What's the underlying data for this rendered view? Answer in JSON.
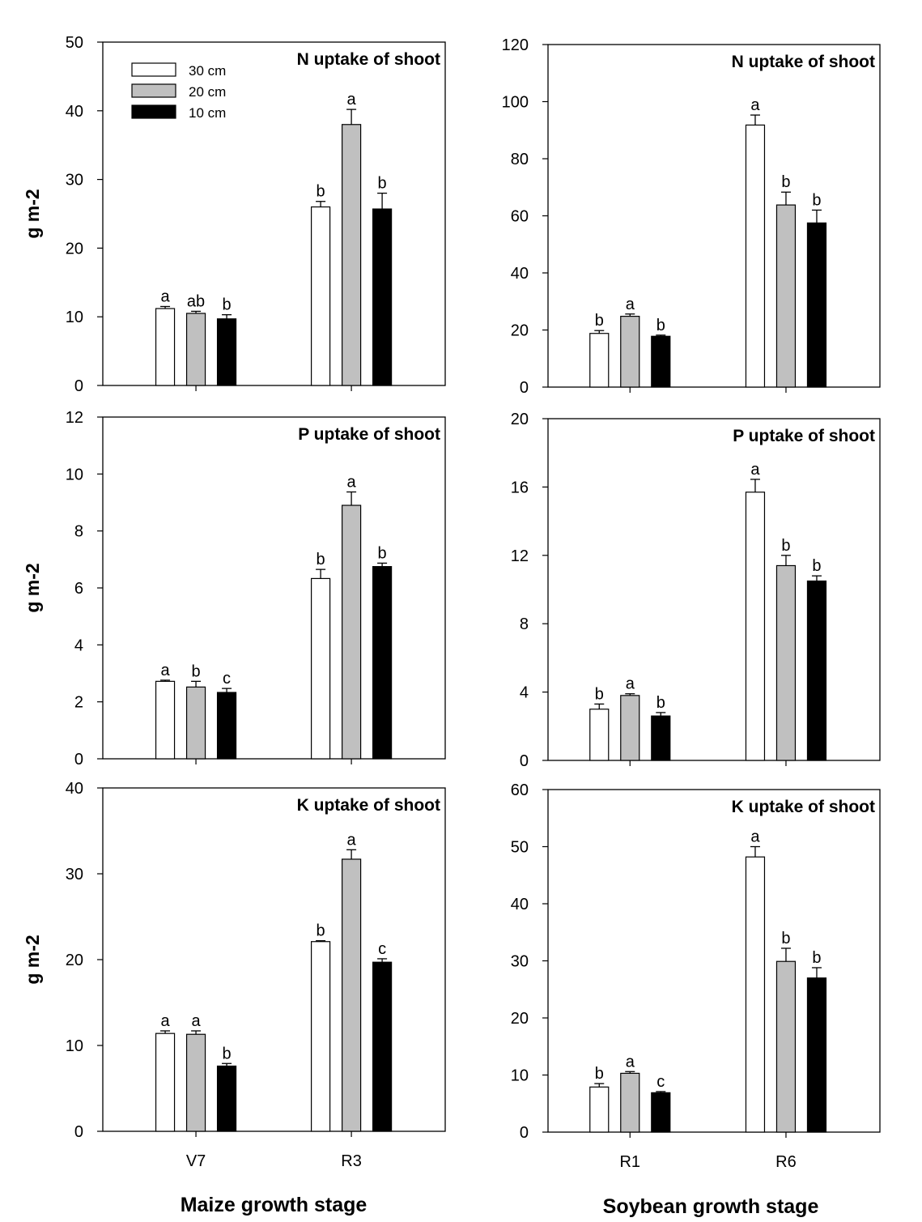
{
  "legend": {
    "entries": [
      {
        "label": "30 cm",
        "color": "#ffffff"
      },
      {
        "label": "20 cm",
        "color": "#c0c0c0"
      },
      {
        "label": "10 cm",
        "color": "#000000"
      }
    ],
    "placement": "top-left of first panel"
  },
  "xlabels": [
    "Maize growth stage",
    "Soybean growth stage"
  ],
  "chart_data": [
    {
      "type": "bar",
      "title": "N uptake of shoot",
      "ylabel": "g m-2",
      "ylim": [
        0,
        50
      ],
      "yticks": [
        0,
        10,
        20,
        30,
        40,
        50
      ],
      "categories": [
        "V7",
        "R3"
      ],
      "show_xticklabels": false,
      "series": [
        {
          "name": "30 cm",
          "values": [
            11.2,
            26.0
          ],
          "errors": [
            0.3,
            0.8
          ],
          "letters": [
            "a",
            "b"
          ]
        },
        {
          "name": "20 cm",
          "values": [
            10.5,
            38.0
          ],
          "errors": [
            0.3,
            2.2
          ],
          "letters": [
            "ab",
            "a"
          ]
        },
        {
          "name": "10 cm",
          "values": [
            9.7,
            25.7
          ],
          "errors": [
            0.6,
            2.3
          ],
          "letters": [
            "b",
            "b"
          ]
        }
      ]
    },
    {
      "type": "bar",
      "title": "N uptake of shoot",
      "ylabel": "",
      "ylim": [
        0,
        120
      ],
      "yticks": [
        0,
        20,
        40,
        60,
        80,
        100,
        120
      ],
      "categories": [
        "R1",
        "R6"
      ],
      "show_xticklabels": false,
      "series": [
        {
          "name": "30 cm",
          "values": [
            18.8,
            91.8
          ],
          "errors": [
            1.0,
            3.5
          ],
          "letters": [
            "b",
            "a"
          ]
        },
        {
          "name": "20 cm",
          "values": [
            24.8,
            63.8
          ],
          "errors": [
            0.8,
            4.5
          ],
          "letters": [
            "a",
            "b"
          ]
        },
        {
          "name": "10 cm",
          "values": [
            17.8,
            57.5
          ],
          "errors": [
            0.4,
            4.5
          ],
          "letters": [
            "b",
            "b"
          ]
        }
      ]
    },
    {
      "type": "bar",
      "title": "P uptake of shoot",
      "ylabel": "g m-2",
      "ylim": [
        0,
        12
      ],
      "yticks": [
        0,
        2,
        4,
        6,
        8,
        10,
        12
      ],
      "categories": [
        "V7",
        "R3"
      ],
      "show_xticklabels": false,
      "series": [
        {
          "name": "30 cm",
          "values": [
            2.72,
            6.33
          ],
          "errors": [
            0.04,
            0.32
          ],
          "letters": [
            "a",
            "b"
          ]
        },
        {
          "name": "20 cm",
          "values": [
            2.52,
            8.9
          ],
          "errors": [
            0.2,
            0.47
          ],
          "letters": [
            "b",
            "a"
          ]
        },
        {
          "name": "10 cm",
          "values": [
            2.33,
            6.75
          ],
          "errors": [
            0.14,
            0.12
          ],
          "letters": [
            "c",
            "b"
          ]
        }
      ]
    },
    {
      "type": "bar",
      "title": "P uptake of shoot",
      "ylabel": "",
      "ylim": [
        0,
        20
      ],
      "yticks": [
        0,
        4,
        8,
        12,
        16,
        20
      ],
      "categories": [
        "R1",
        "R6"
      ],
      "show_xticklabels": false,
      "series": [
        {
          "name": "30 cm",
          "values": [
            3.0,
            15.7
          ],
          "errors": [
            0.3,
            0.75
          ],
          "letters": [
            "b",
            "a"
          ]
        },
        {
          "name": "20 cm",
          "values": [
            3.8,
            11.4
          ],
          "errors": [
            0.1,
            0.6
          ],
          "letters": [
            "a",
            "b"
          ]
        },
        {
          "name": "10 cm",
          "values": [
            2.6,
            10.5
          ],
          "errors": [
            0.2,
            0.3
          ],
          "letters": [
            "b",
            "b"
          ]
        }
      ]
    },
    {
      "type": "bar",
      "title": "K uptake of shoot",
      "ylabel": "g m-2",
      "ylim": [
        0,
        40
      ],
      "yticks": [
        0,
        10,
        20,
        30,
        40
      ],
      "categories": [
        "V7",
        "R3"
      ],
      "show_xticklabels": true,
      "series": [
        {
          "name": "30 cm",
          "values": [
            11.4,
            22.1
          ],
          "errors": [
            0.3,
            0.1
          ],
          "letters": [
            "a",
            "b"
          ]
        },
        {
          "name": "20 cm",
          "values": [
            11.3,
            31.7
          ],
          "errors": [
            0.4,
            1.1
          ],
          "letters": [
            "a",
            "a"
          ]
        },
        {
          "name": "10 cm",
          "values": [
            7.6,
            19.7
          ],
          "errors": [
            0.3,
            0.4
          ],
          "letters": [
            "b",
            "c"
          ]
        }
      ]
    },
    {
      "type": "bar",
      "title": "K uptake of shoot",
      "ylabel": "",
      "ylim": [
        0,
        60
      ],
      "yticks": [
        0,
        10,
        20,
        30,
        40,
        50,
        60
      ],
      "categories": [
        "R1",
        "R6"
      ],
      "show_xticklabels": true,
      "series": [
        {
          "name": "30 cm",
          "values": [
            7.9,
            48.2
          ],
          "errors": [
            0.6,
            1.8
          ],
          "letters": [
            "b",
            "a"
          ]
        },
        {
          "name": "20 cm",
          "values": [
            10.3,
            29.9
          ],
          "errors": [
            0.3,
            2.3
          ],
          "letters": [
            "a",
            "b"
          ]
        },
        {
          "name": "10 cm",
          "values": [
            6.9,
            27.0
          ],
          "errors": [
            0.2,
            1.8
          ],
          "letters": [
            "c",
            "b"
          ]
        }
      ]
    }
  ]
}
